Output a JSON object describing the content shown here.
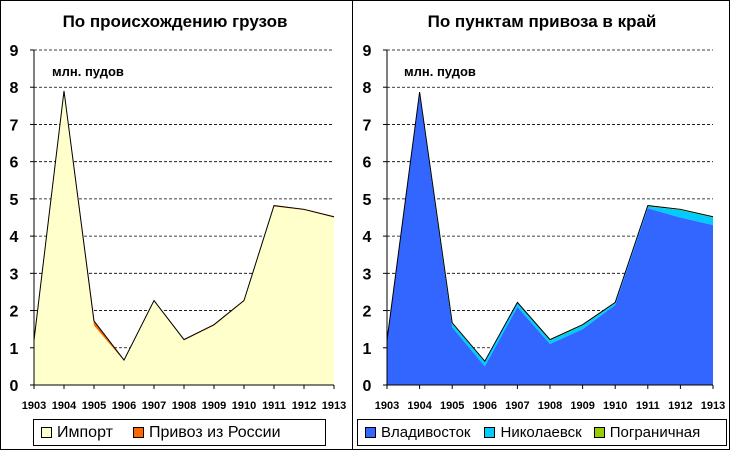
{
  "chart_data": [
    {
      "type": "area",
      "stacked": true,
      "title": "По происхождению грузов",
      "unit_label": "млн. пудов",
      "categories": [
        "1903",
        "1904",
        "1905",
        "1906",
        "1907",
        "1908",
        "1909",
        "1910",
        "1911",
        "1912",
        "1913"
      ],
      "ylim": [
        0,
        9
      ],
      "yticks": [
        "0",
        "1",
        "2",
        "3",
        "4",
        "5",
        "6",
        "7",
        "8",
        "9"
      ],
      "grid": true,
      "legend_position": "bottom",
      "series": [
        {
          "name": "Импорт",
          "color": "#ffffcc",
          "values": [
            1.2,
            7.85,
            1.6,
            0.65,
            2.25,
            1.2,
            1.6,
            2.25,
            4.8,
            4.7,
            4.5
          ]
        },
        {
          "name": "Привоз из России",
          "color": "#ff6600",
          "values": [
            0.0,
            0.05,
            0.12,
            0.02,
            0.02,
            0.02,
            0.02,
            0.02,
            0.02,
            0.02,
            0.02
          ]
        }
      ]
    },
    {
      "type": "area",
      "stacked": true,
      "title": "По пунктам привоза в край",
      "unit_label": "млн. пудов",
      "categories": [
        "1903",
        "1904",
        "1905",
        "1906",
        "1907",
        "1908",
        "1909",
        "1910",
        "1911",
        "1912",
        "1913"
      ],
      "ylim": [
        0,
        9
      ],
      "yticks": [
        "0",
        "1",
        "2",
        "3",
        "4",
        "5",
        "6",
        "7",
        "8",
        "9"
      ],
      "grid": true,
      "legend_position": "bottom",
      "series": [
        {
          "name": "Владивосток",
          "color": "#3366ff",
          "values": [
            1.2,
            7.8,
            1.55,
            0.5,
            2.1,
            1.1,
            1.5,
            2.15,
            4.75,
            4.5,
            4.3
          ]
        },
        {
          "name": "Николаевск",
          "color": "#00ccff",
          "values": [
            0.0,
            0.05,
            0.1,
            0.12,
            0.1,
            0.1,
            0.1,
            0.05,
            0.05,
            0.2,
            0.2
          ]
        },
        {
          "name": "Пограничная",
          "color": "#99cc00",
          "values": [
            0.0,
            0.02,
            0.02,
            0.02,
            0.02,
            0.02,
            0.02,
            0.02,
            0.02,
            0.02,
            0.02
          ]
        }
      ]
    }
  ]
}
